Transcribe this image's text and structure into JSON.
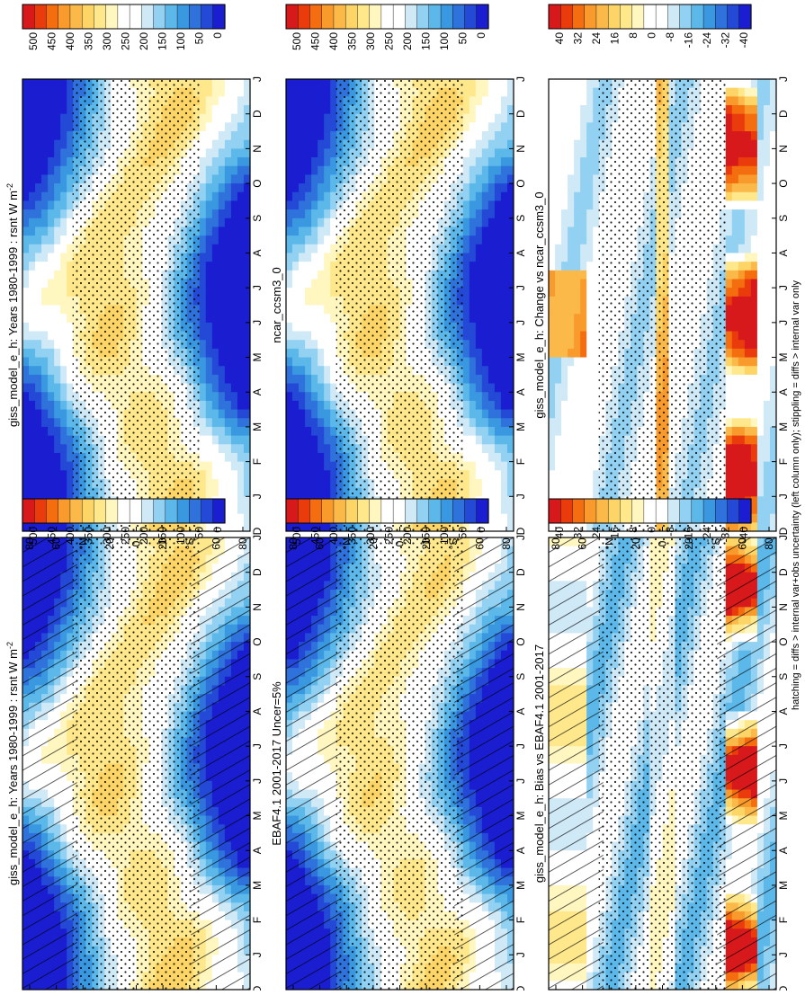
{
  "figure": {
    "footnote": "hatching = diffs > internal var+obs uncertainty (left column only); stippling = diffs > internal var only"
  },
  "scales": {
    "absolute": {
      "labels": [
        "500",
        "450",
        "400",
        "350",
        "300",
        "250",
        "200",
        "150",
        "100",
        "50",
        "0"
      ],
      "colors": [
        "#d7191c",
        "#ea3b0c",
        "#f46d0f",
        "#f89b2c",
        "#fbb94a",
        "#fdd567",
        "#ffe88c",
        "#fff6c0",
        "#ffffff",
        "#ffffff",
        "#cfe9f7",
        "#92d1f2",
        "#5db8ea",
        "#3a98e0",
        "#2f72db",
        "#2349d6",
        "#1a1ed0"
      ]
    },
    "difference": {
      "labels": [
        "40",
        "32",
        "24",
        "16",
        "8",
        "0",
        "-8",
        "-16",
        "-24",
        "-32",
        "-40"
      ],
      "colors": [
        "#d7191c",
        "#ea3b0c",
        "#f46d0f",
        "#f89b2c",
        "#fbb94a",
        "#fdd567",
        "#ffe88c",
        "#fff6c0",
        "#ffffff",
        "#ffffff",
        "#cfe9f7",
        "#92d1f2",
        "#5db8ea",
        "#3a98e0",
        "#2f72db",
        "#2349d6",
        "#1a1ed0"
      ]
    }
  },
  "axes": {
    "months": [
      "D",
      "J",
      "F",
      "M",
      "A",
      "M",
      "J",
      "J",
      "A",
      "S",
      "O",
      "N",
      "D",
      "J"
    ],
    "latitude_ticks": [
      "80",
      "60",
      "°N",
      "20",
      "0",
      "20",
      "°S",
      "60",
      "80"
    ]
  },
  "chart_data": [
    {
      "type": "heatmap",
      "id": "model-mean",
      "title": "giss_model_e_h: Years 1980-1999 : rsnt W m",
      "title_superscript": "-2",
      "x": [
        "D",
        "J",
        "F",
        "M",
        "A",
        "M",
        "J",
        "J",
        "A",
        "S",
        "O",
        "N",
        "D",
        "J"
      ],
      "y_ticks": [
        "80",
        "60",
        "°N",
        "20",
        "0",
        "20",
        "°S",
        "60",
        "80"
      ],
      "colorbar": "absolute",
      "vmin": 0,
      "vmax": 500,
      "overlay": "hatching+stippling"
    },
    {
      "type": "heatmap",
      "id": "model-mean-right",
      "title": "giss_model_e_h: Years 1980-1999 : rsnt W m",
      "title_superscript": "-2",
      "x": [
        "D",
        "J",
        "F",
        "M",
        "A",
        "M",
        "J",
        "J",
        "A",
        "S",
        "O",
        "N",
        "D",
        "J"
      ],
      "y_ticks": [
        "80",
        "60",
        "°N",
        "20",
        "0",
        "20",
        "°S",
        "60",
        "80"
      ],
      "colorbar": "absolute",
      "vmin": 0,
      "vmax": 500,
      "overlay": "stippling"
    },
    {
      "type": "heatmap",
      "id": "obs",
      "title": "EBAF4.1 2001-2017 Uncer=5%",
      "x": [
        "D",
        "J",
        "F",
        "M",
        "A",
        "M",
        "J",
        "J",
        "A",
        "S",
        "O",
        "N",
        "D",
        "J"
      ],
      "y_ticks": [
        "80",
        "60",
        "°N",
        "20",
        "0",
        "20",
        "°S",
        "60",
        "80"
      ],
      "colorbar": "absolute",
      "vmin": 0,
      "vmax": 500,
      "overlay": "hatching+stippling"
    },
    {
      "type": "heatmap",
      "id": "reference-model",
      "title": "ncar_ccsm3_0",
      "x": [
        "D",
        "J",
        "F",
        "M",
        "A",
        "M",
        "J",
        "J",
        "A",
        "S",
        "O",
        "N",
        "D",
        "J"
      ],
      "y_ticks": [
        "80",
        "60",
        "°N",
        "20",
        "0",
        "20",
        "°S",
        "60",
        "80"
      ],
      "colorbar": "absolute",
      "vmin": 0,
      "vmax": 500,
      "overlay": "stippling"
    },
    {
      "type": "heatmap",
      "id": "bias",
      "title": "giss_model_e_h: Bias vs EBAF4.1 2001-2017",
      "x": [
        "D",
        "J",
        "F",
        "M",
        "A",
        "M",
        "J",
        "J",
        "A",
        "S",
        "O",
        "N",
        "D",
        "J"
      ],
      "y_ticks": [
        "80",
        "60",
        "°N",
        "20",
        "0",
        "20",
        "°S",
        "60",
        "80"
      ],
      "colorbar": "difference",
      "vmin": -40,
      "vmax": 40,
      "overlay": "hatching+stippling"
    },
    {
      "type": "heatmap",
      "id": "change",
      "title": "giss_model_e_h: Change vs ncar_ccsm3_0",
      "x": [
        "D",
        "J",
        "F",
        "M",
        "A",
        "M",
        "J",
        "J",
        "A",
        "S",
        "O",
        "N",
        "D",
        "J"
      ],
      "y_ticks": [
        "80",
        "60",
        "°N",
        "20",
        "0",
        "20",
        "°S",
        "60",
        "80"
      ],
      "colorbar": "difference",
      "vmin": -40,
      "vmax": 40,
      "overlay": "stippling"
    }
  ]
}
